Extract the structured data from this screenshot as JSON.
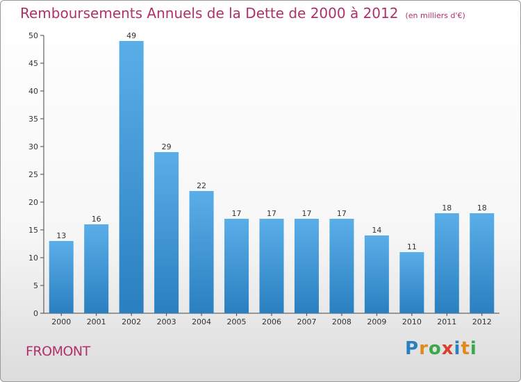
{
  "title": "Remboursements Annuels de la Dette de 2000 à 2012",
  "unit": "(en milliers d'€)",
  "place": "FROMONT",
  "logo": "Proxiti",
  "colors": {
    "title": "#b0306a",
    "bar_top": "#5aaee8",
    "bar_bottom": "#2a7fc0"
  },
  "chart_data": {
    "type": "bar",
    "categories": [
      "2000",
      "2001",
      "2002",
      "2003",
      "2004",
      "2005",
      "2006",
      "2007",
      "2008",
      "2009",
      "2010",
      "2011",
      "2012"
    ],
    "values": [
      13,
      16,
      49,
      29,
      22,
      17,
      17,
      17,
      17,
      14,
      11,
      18,
      18
    ],
    "ylim": [
      0,
      50
    ],
    "yticks": [
      0,
      5,
      10,
      15,
      20,
      25,
      30,
      35,
      40,
      45,
      50
    ],
    "grid": false,
    "data_labels": true
  }
}
